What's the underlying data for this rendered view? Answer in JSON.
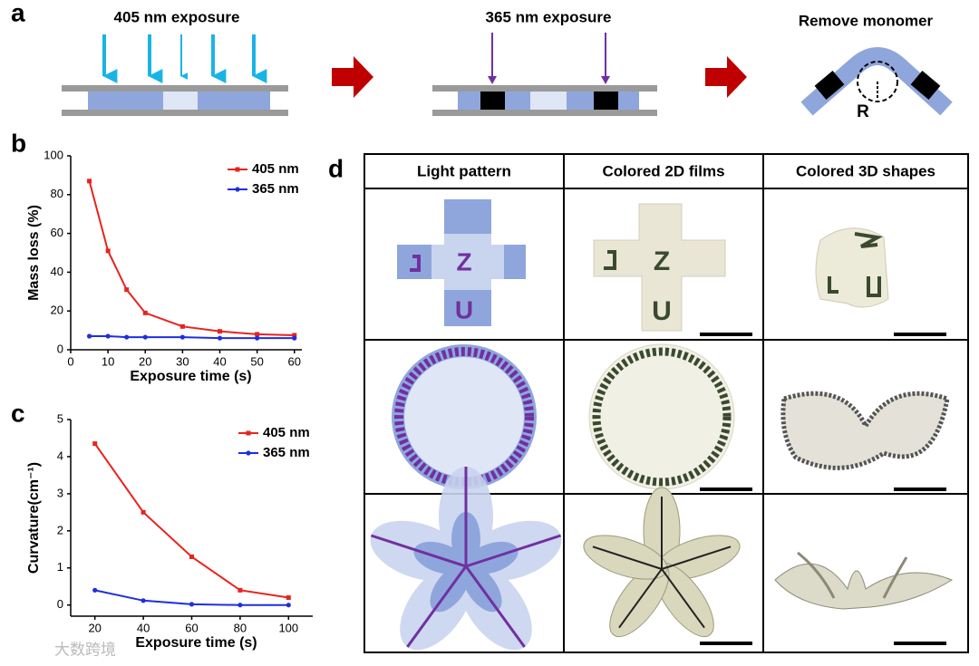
{
  "panel_labels": [
    "a",
    "b",
    "c",
    "d"
  ],
  "scheme": {
    "steps": [
      "405 nm exposure",
      "365 nm exposure",
      "Remove monomer"
    ],
    "radius_label": "R"
  },
  "chart_data": [
    {
      "type": "line",
      "xlabel": "Exposure time (s)",
      "ylabel": "Mass loss (%)",
      "x": [
        5,
        10,
        15,
        20,
        30,
        40,
        50,
        60
      ],
      "series": [
        {
          "name": "405 nm",
          "color": "#e8231e",
          "marker": "square",
          "values": [
            87,
            51,
            31,
            19,
            12,
            9.5,
            8,
            7.5
          ]
        },
        {
          "name": "365 nm",
          "color": "#1e2ee0",
          "marker": "circle",
          "values": [
            7,
            7,
            6.5,
            6.5,
            6.5,
            6,
            6,
            6
          ]
        }
      ],
      "xlim": [
        0,
        62
      ],
      "xticks": [
        0,
        10,
        20,
        30,
        40,
        50,
        60
      ],
      "ylim": [
        0,
        100
      ],
      "yticks": [
        0,
        20,
        40,
        60,
        80,
        100
      ],
      "legend": "upper right"
    },
    {
      "type": "line",
      "xlabel": "Exposure time (s)",
      "ylabel": "Curvature(cm⁻¹)",
      "x": [
        20,
        40,
        60,
        80,
        100
      ],
      "series": [
        {
          "name": "405 nm",
          "color": "#e8231e",
          "marker": "square",
          "values": [
            4.35,
            2.5,
            1.3,
            0.4,
            0.2
          ]
        },
        {
          "name": "365 nm",
          "color": "#1e2ee0",
          "marker": "circle",
          "values": [
            0.4,
            0.12,
            0.02,
            0,
            0
          ]
        }
      ],
      "xlim": [
        10,
        110
      ],
      "xticks": [
        20,
        40,
        60,
        80,
        100
      ],
      "ylim": [
        -0.3,
        5
      ],
      "yticks": [
        0,
        1,
        2,
        3,
        4,
        5
      ],
      "legend": "upper right"
    }
  ],
  "table": {
    "headers": [
      "Light pattern",
      "Colored 2D films",
      "Colored 3D shapes"
    ],
    "cross_letters": [
      "Z",
      "U"
    ]
  },
  "watermark": "大数跨境"
}
